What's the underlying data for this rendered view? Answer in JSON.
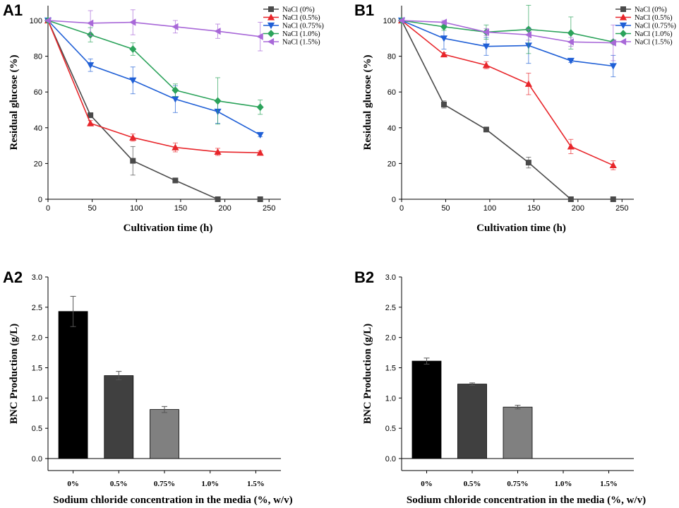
{
  "chart_data": [
    {
      "panel": "A1",
      "type": "line",
      "xlabel": "Cultivation time (h)",
      "ylabel": "Residual glucose (%)",
      "xlim": [
        0,
        265
      ],
      "ylim": [
        0,
        110
      ],
      "xticks": [
        0,
        50,
        100,
        150,
        200,
        250
      ],
      "yticks": [
        0,
        20,
        40,
        60,
        80,
        100
      ],
      "legend_position": "top-right",
      "series": [
        {
          "name": "NaCl (0%)",
          "color": "#4a4a4a",
          "marker": "square",
          "x": [
            0,
            48,
            96,
            144,
            192,
            240
          ],
          "values": [
            100,
            47,
            21.5,
            10.5,
            0,
            0
          ],
          "err": [
            0,
            1,
            8,
            1,
            0,
            0
          ]
        },
        {
          "name": "NaCl (0.5%)",
          "color": "#e8262b",
          "marker": "triangle-up",
          "x": [
            0,
            48,
            96,
            144,
            192,
            240
          ],
          "values": [
            100,
            42.5,
            34.5,
            29,
            26.5,
            26
          ],
          "err": [
            0,
            1.5,
            2,
            2.5,
            2,
            1
          ]
        },
        {
          "name": "NaCl (0.75%)",
          "color": "#1f5fd6",
          "marker": "triangle-down",
          "x": [
            0,
            48,
            96,
            144,
            192,
            240
          ],
          "values": [
            100,
            75,
            66.5,
            56,
            49,
            36
          ],
          "err": [
            0,
            3.5,
            7.5,
            7.5,
            6.5,
            1
          ]
        },
        {
          "name": "NaCl (1.0%)",
          "color": "#2ca35b",
          "marker": "diamond",
          "x": [
            0,
            48,
            96,
            144,
            192,
            240
          ],
          "values": [
            100,
            92,
            84,
            61,
            55,
            51.5
          ],
          "err": [
            0,
            4,
            3.5,
            3.5,
            13,
            4
          ]
        },
        {
          "name": "NaCl (1.5%)",
          "color": "#a868d8",
          "marker": "triangle-left",
          "x": [
            0,
            48,
            96,
            144,
            192,
            240
          ],
          "values": [
            100,
            98.5,
            99,
            96.5,
            94,
            91
          ],
          "err": [
            0,
            7,
            7,
            3.5,
            4,
            8
          ]
        }
      ]
    },
    {
      "panel": "B1",
      "type": "line",
      "xlabel": "Cultivation time (h)",
      "ylabel": "Residual glucose (%)",
      "xlim": [
        0,
        265
      ],
      "ylim": [
        0,
        110
      ],
      "xticks": [
        0,
        50,
        100,
        150,
        200,
        250
      ],
      "yticks": [
        0,
        20,
        40,
        60,
        80,
        100
      ],
      "legend_position": "top-right",
      "series": [
        {
          "name": "NaCl (0%)",
          "color": "#4a4a4a",
          "marker": "square",
          "x": [
            0,
            48,
            96,
            144,
            192,
            240
          ],
          "values": [
            100,
            53,
            39,
            20.5,
            0,
            0
          ],
          "err": [
            0,
            2,
            0.5,
            3,
            0,
            0
          ]
        },
        {
          "name": "NaCl (0.5%)",
          "color": "#e8262b",
          "marker": "triangle-up",
          "x": [
            0,
            48,
            96,
            144,
            192,
            240
          ],
          "values": [
            100,
            81,
            75,
            64.5,
            29.5,
            19
          ],
          "err": [
            0,
            1,
            2,
            6,
            4,
            2.5
          ]
        },
        {
          "name": "NaCl (0.75%)",
          "color": "#1f5fd6",
          "marker": "triangle-down",
          "x": [
            0,
            48,
            96,
            144,
            192,
            240
          ],
          "values": [
            100,
            90,
            85.5,
            86,
            77.5,
            74.5
          ],
          "err": [
            0,
            6,
            5,
            10,
            1,
            6
          ]
        },
        {
          "name": "NaCl (1.0%)",
          "color": "#2ca35b",
          "marker": "diamond",
          "x": [
            0,
            48,
            96,
            144,
            192,
            240
          ],
          "values": [
            100,
            96.5,
            93.5,
            95,
            93,
            88
          ],
          "err": [
            0,
            2,
            4,
            13.5,
            9,
            1
          ]
        },
        {
          "name": "NaCl (1.5%)",
          "color": "#a868d8",
          "marker": "triangle-left",
          "x": [
            0,
            48,
            96,
            144,
            192,
            240
          ],
          "values": [
            100,
            99,
            93.5,
            92,
            88,
            87.5
          ],
          "err": [
            0,
            1,
            2,
            3,
            2.5,
            10
          ]
        }
      ]
    },
    {
      "panel": "A2",
      "type": "bar",
      "xlabel": "Sodium chloride concentration in the media (%, w/v)",
      "ylabel": "BNC Production (g/L)",
      "ylim": [
        -0.2,
        3.0
      ],
      "yticks": [
        "0.0",
        "0.5",
        "1.0",
        "1.5",
        "2.0",
        "2.5",
        "3.0"
      ],
      "categories": [
        "0%",
        "0.5%",
        "0.75%",
        "1.0%",
        "1.5%"
      ],
      "values": [
        2.43,
        1.37,
        0.81,
        0,
        0
      ],
      "err": [
        0.25,
        0.07,
        0.05,
        0,
        0
      ],
      "colors": [
        "#000000",
        "#404040",
        "#808080",
        "#b0b0b0",
        "#d0d0d0"
      ]
    },
    {
      "panel": "B2",
      "type": "bar",
      "xlabel": "Sodium chloride concentration in the media (%, w/v)",
      "ylabel": "BNC Production (g/L)",
      "ylim": [
        -0.2,
        3.0
      ],
      "yticks": [
        "0.0",
        "0.5",
        "1.0",
        "1.5",
        "2.0",
        "2.5",
        "3.0"
      ],
      "categories": [
        "0%",
        "0.5%",
        "0.75%",
        "1.0%",
        "1.5%"
      ],
      "values": [
        1.61,
        1.23,
        0.85,
        0,
        0
      ],
      "err": [
        0.05,
        0.02,
        0.03,
        0,
        0
      ],
      "colors": [
        "#000000",
        "#404040",
        "#808080",
        "#b0b0b0",
        "#d0d0d0"
      ]
    }
  ]
}
